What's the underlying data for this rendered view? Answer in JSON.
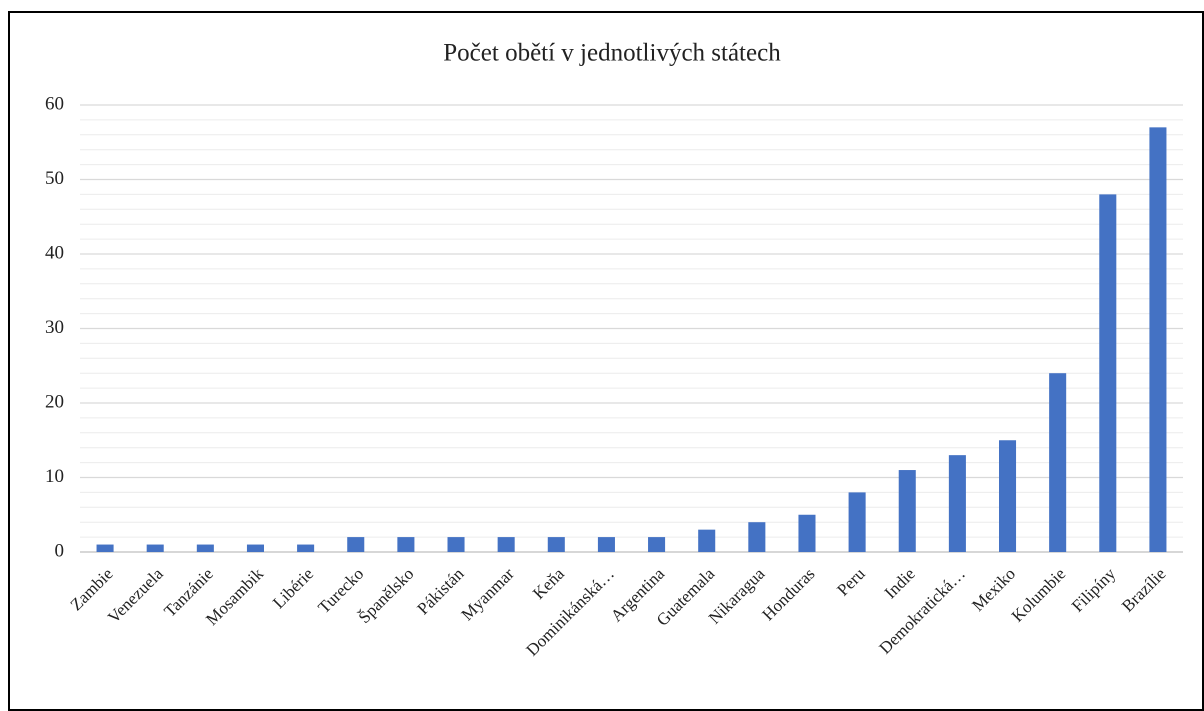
{
  "chart_data": {
    "type": "bar",
    "title": "Počet obětí v jednotlivých státech",
    "categories": [
      "Zambie",
      "Venezuela",
      "Tanzánie",
      "Mosambik",
      "Libérie",
      "Turecko",
      "Španělsko",
      "Pákistán",
      "Myanmar",
      "Keňa",
      "Dominikánská…",
      "Argentina",
      "Guatemala",
      "Nikaragua",
      "Honduras",
      "Peru",
      "Indie",
      "Demokratická…",
      "Mexiko",
      "Kolumbie",
      "Filipíny",
      "Brazílie"
    ],
    "values": [
      1,
      1,
      1,
      1,
      1,
      2,
      2,
      2,
      2,
      2,
      2,
      2,
      3,
      4,
      5,
      8,
      11,
      13,
      15,
      24,
      48,
      57
    ],
    "color": "#4472c4",
    "ylim": [
      0,
      60
    ],
    "yticks": [
      0,
      10,
      20,
      30,
      40,
      50,
      60
    ],
    "yminorticks": [
      2,
      4,
      6,
      8,
      12,
      14,
      16,
      18,
      22,
      24,
      26,
      28,
      32,
      34,
      36,
      38,
      42,
      44,
      46,
      48,
      52,
      54,
      56,
      58
    ],
    "grid": true
  }
}
